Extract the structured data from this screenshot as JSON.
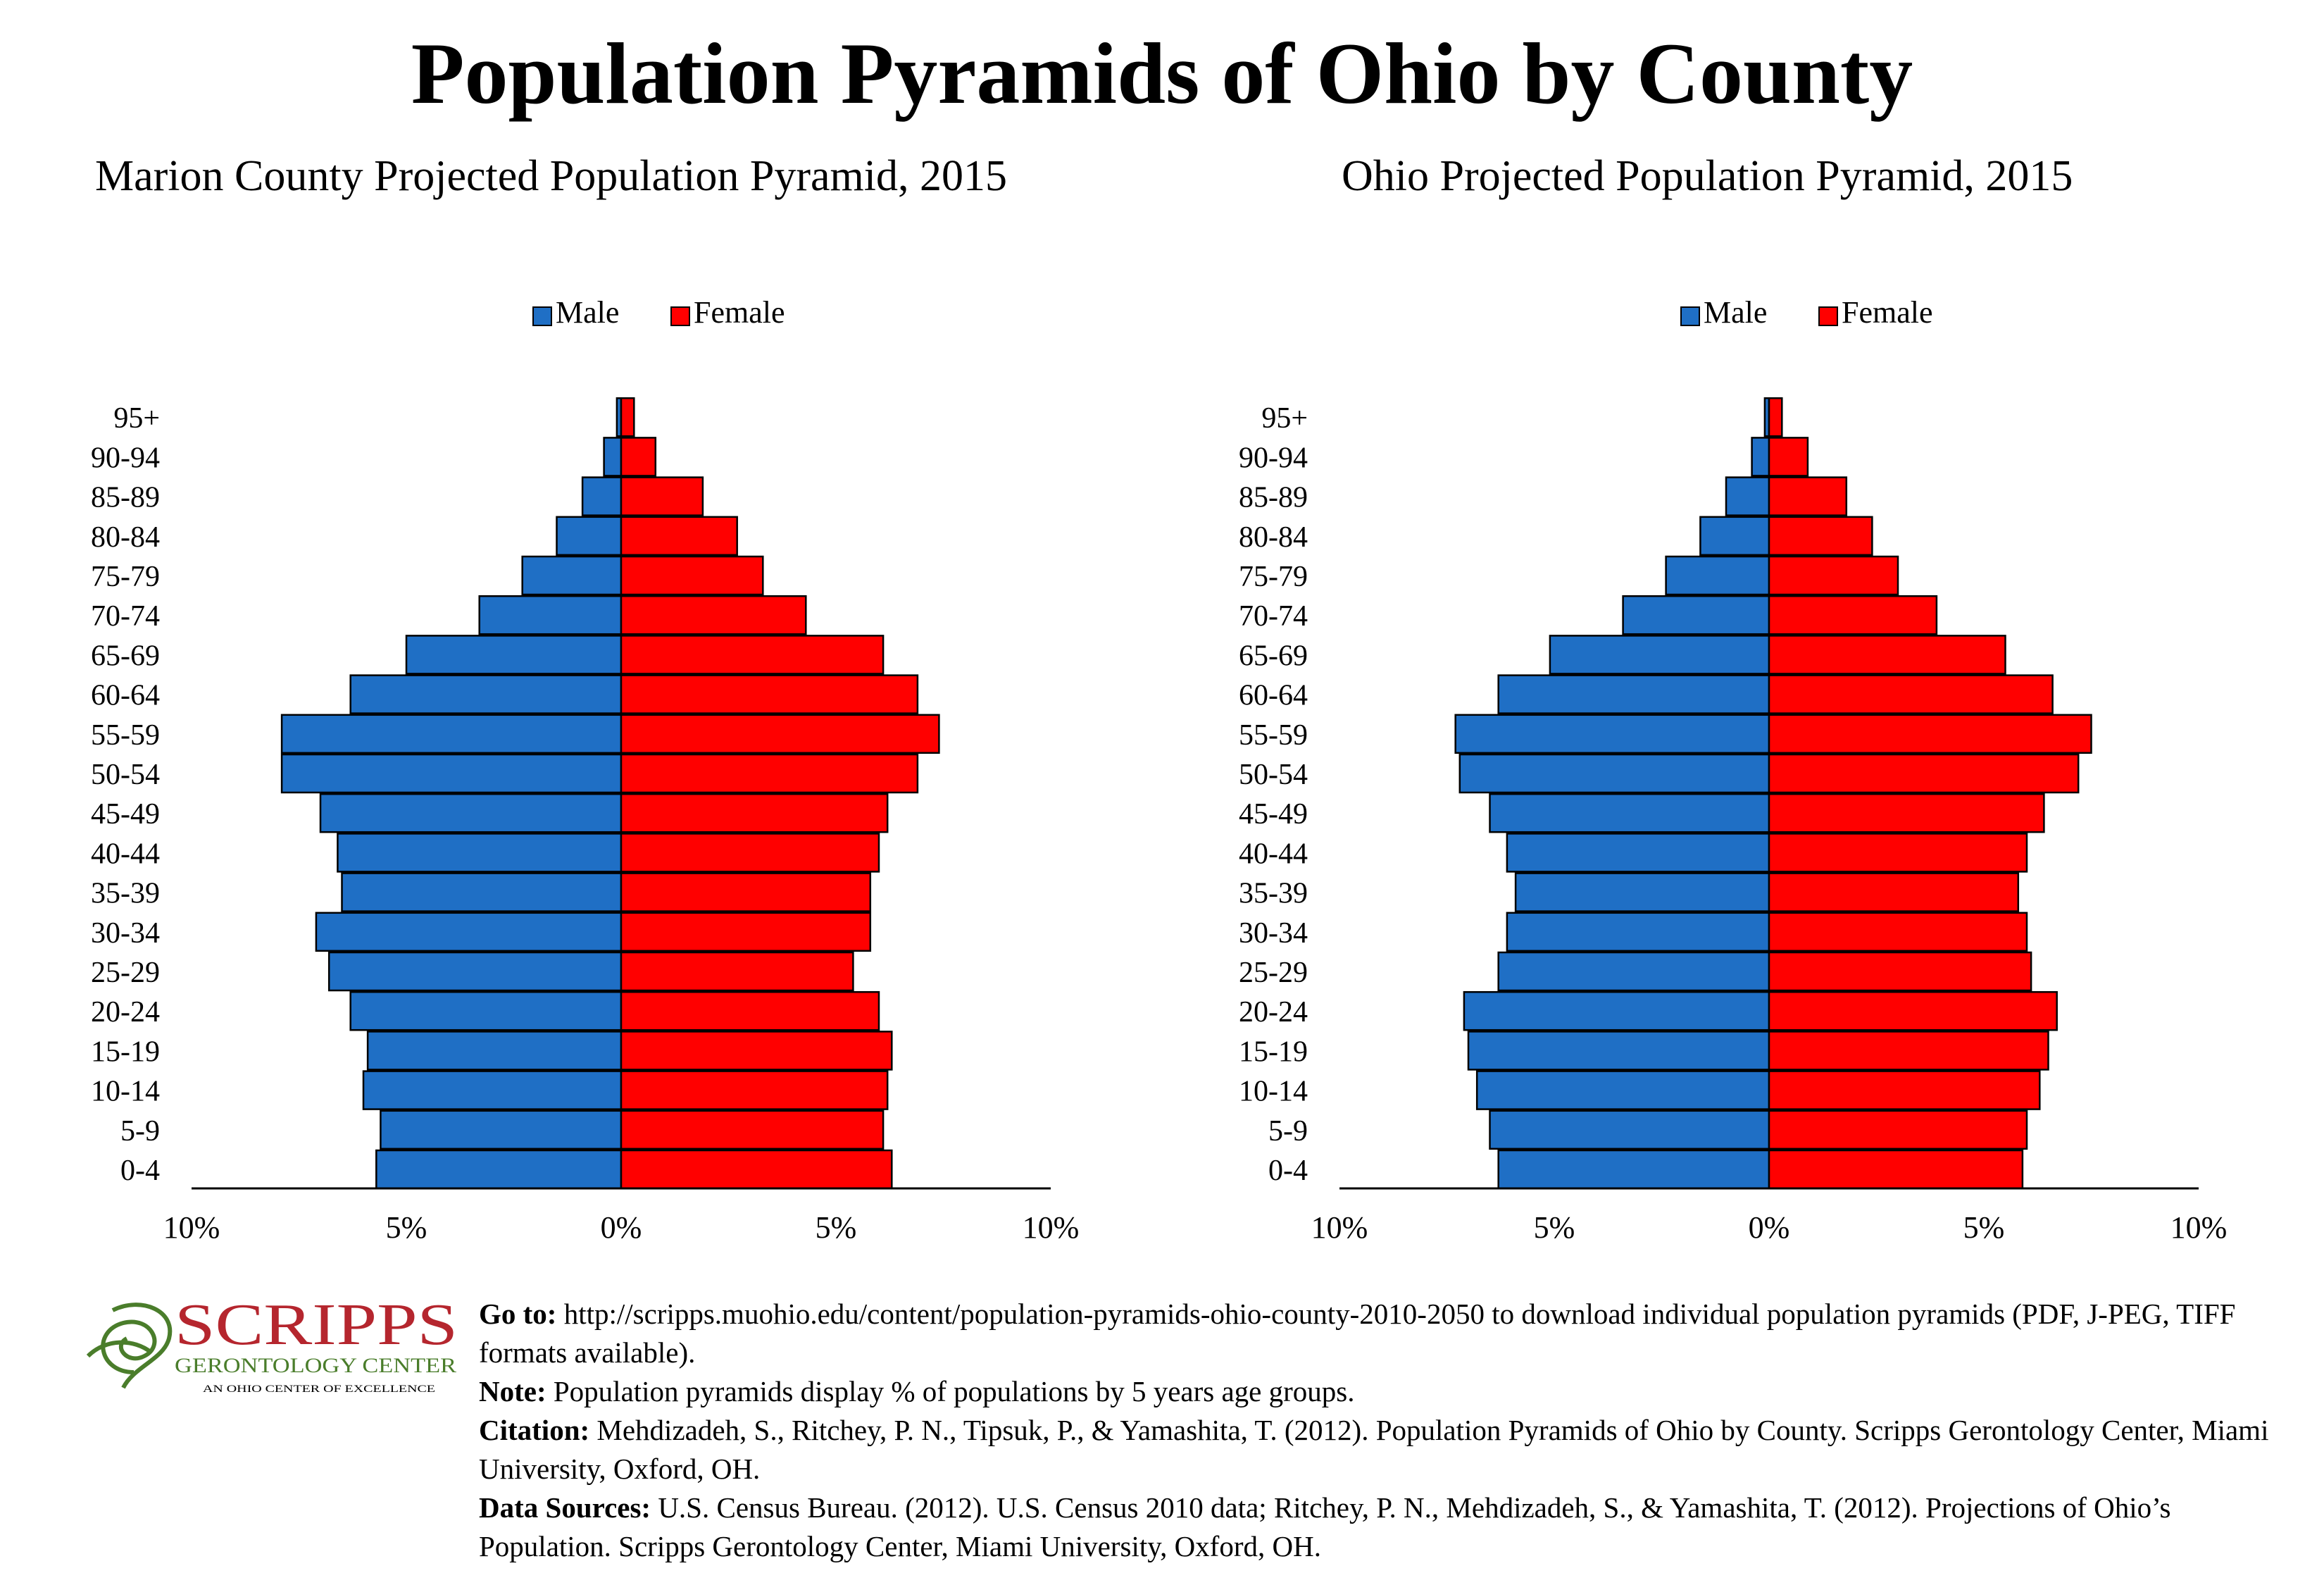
{
  "main_title": "Population Pyramids of Ohio by County",
  "colors": {
    "male": "#1f6fc5",
    "female": "#ff0000",
    "axis": "#000000"
  },
  "chart_data": [
    {
      "type": "bar",
      "orientation": "horizontal-pyramid",
      "title": "Marion County Projected Population Pyramid, 2015",
      "legend_position": "top-center",
      "categories": [
        "0-4",
        "5-9",
        "10-14",
        "15-19",
        "20-24",
        "25-29",
        "30-34",
        "35-39",
        "40-44",
        "45-49",
        "50-54",
        "55-59",
        "60-64",
        "65-69",
        "70-74",
        "75-79",
        "80-84",
        "85-89",
        "90-94",
        "95+"
      ],
      "series": [
        {
          "name": "Male",
          "values": [
            5.7,
            5.6,
            6.0,
            5.9,
            6.3,
            6.8,
            7.1,
            6.5,
            6.6,
            7.0,
            7.9,
            7.9,
            6.3,
            5.0,
            3.3,
            2.3,
            1.5,
            0.9,
            0.4,
            0.1
          ]
        },
        {
          "name": "Female",
          "values": [
            6.3,
            6.1,
            6.2,
            6.3,
            6.0,
            5.4,
            5.8,
            5.8,
            6.0,
            6.2,
            6.9,
            7.4,
            6.9,
            6.1,
            4.3,
            3.3,
            2.7,
            1.9,
            0.8,
            0.3
          ]
        }
      ],
      "xlim": [
        -10,
        10
      ],
      "tick_values": [
        -10,
        -5,
        0,
        5,
        10
      ],
      "tick_labels": [
        "10%",
        "5%",
        "0%",
        "5%",
        "10%"
      ]
    },
    {
      "type": "bar",
      "orientation": "horizontal-pyramid",
      "title": "Ohio Projected Population Pyramid, 2015",
      "legend_position": "top-center",
      "categories": [
        "0-4",
        "5-9",
        "10-14",
        "15-19",
        "20-24",
        "25-29",
        "30-34",
        "35-39",
        "40-44",
        "45-49",
        "50-54",
        "55-59",
        "60-64",
        "65-69",
        "70-74",
        "75-79",
        "80-84",
        "85-89",
        "90-94",
        "95+"
      ],
      "series": [
        {
          "name": "Male",
          "values": [
            6.3,
            6.5,
            6.8,
            7.0,
            7.1,
            6.3,
            6.1,
            5.9,
            6.1,
            6.5,
            7.2,
            7.3,
            6.3,
            5.1,
            3.4,
            2.4,
            1.6,
            1.0,
            0.4,
            0.1
          ]
        },
        {
          "name": "Female",
          "values": [
            5.9,
            6.0,
            6.3,
            6.5,
            6.7,
            6.1,
            6.0,
            5.8,
            6.0,
            6.4,
            7.2,
            7.5,
            6.6,
            5.5,
            3.9,
            3.0,
            2.4,
            1.8,
            0.9,
            0.3
          ]
        }
      ],
      "xlim": [
        -10,
        10
      ],
      "tick_values": [
        -10,
        -5,
        0,
        5,
        10
      ],
      "tick_labels": [
        "10%",
        "5%",
        "0%",
        "5%",
        "10%"
      ]
    }
  ],
  "logo": {
    "name": "SCRIPPS",
    "line2": "GERONTOLOGY CENTER",
    "line3": "AN OHIO CENTER OF EXCELLENCE"
  },
  "footer": {
    "goto_label": "Go to:",
    "goto_text": " http://scripps.muohio.edu/content/population-pyramids-ohio-county-2010-2050 to download individual population pyramids (PDF, J-PEG, TIFF formats available).",
    "note_label": "Note:",
    "note_text": " Population pyramids display % of populations by 5 years age groups.",
    "citation_label": "Citation:",
    "citation_text": " Mehdizadeh, S., Ritchey, P. N., Tipsuk, P., & Yamashita, T. (2012). Population Pyramids of Ohio by County. Scripps Gerontology Center, Miami University, Oxford, OH.",
    "sources_label": "Data Sources:",
    "sources_text": " U.S. Census Bureau. (2012). U.S. Census 2010 data; Ritchey, P. N., Mehdizadeh, S., & Yamashita, T. (2012). Projections of Ohio’s Population. Scripps Gerontology Center, Miami University, Oxford, OH."
  }
}
